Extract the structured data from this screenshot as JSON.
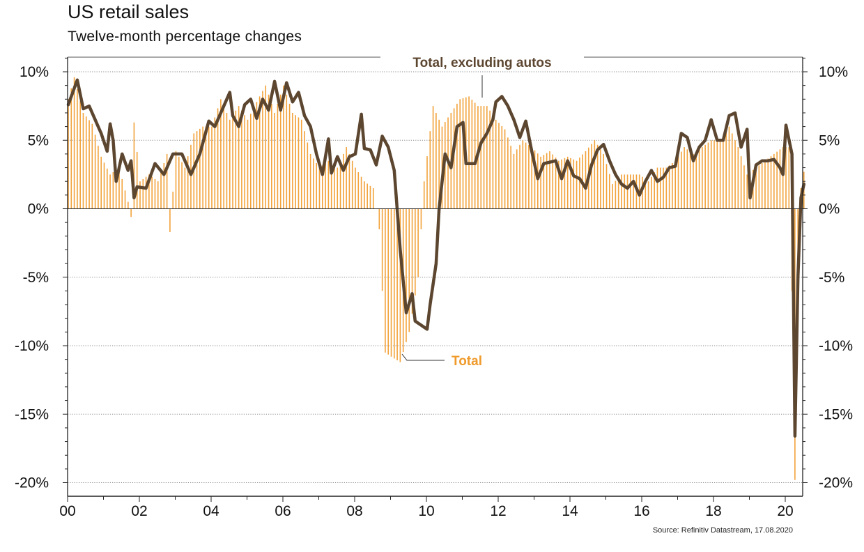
{
  "header": {
    "title": "US retail sales",
    "subtitle": "Twelve-month percentage changes"
  },
  "footer": {
    "source": "Source: Refinitiv Datastream, 17.08.2020"
  },
  "colors": {
    "bars": "#f2a23a",
    "line": "#5c4630",
    "total_label": "#ef9a2b",
    "grid": "#8a8a8a",
    "axis": "#222222"
  },
  "chart_data": {
    "type": "bar",
    "title": "US retail sales",
    "subtitle": "Twelve-month percentage changes",
    "x_start": "2000-01",
    "x_end": "2020-07",
    "x_ticks": [
      "00",
      "02",
      "04",
      "06",
      "08",
      "10",
      "12",
      "14",
      "16",
      "18",
      "20"
    ],
    "y_ticks": [
      "10%",
      "5%",
      "0%",
      "-5%",
      "-10%",
      "-15%",
      "-20%"
    ],
    "ylim": [
      -21,
      11
    ],
    "grid": "horizontal dotted",
    "legend": "inline labels",
    "series": [
      {
        "name": "Total",
        "type": "bar",
        "monthly_anchors": [
          [
            "2000-01",
            8.0
          ],
          [
            "2000-03",
            9.6
          ],
          [
            "2000-06",
            7.0
          ],
          [
            "2000-09",
            6.2
          ],
          [
            "2000-12",
            3.8
          ],
          [
            "2001-03",
            2.5
          ],
          [
            "2001-06",
            3.0
          ],
          [
            "2001-09",
            0.5
          ],
          [
            "2001-10",
            -0.6
          ],
          [
            "2001-11",
            6.3
          ],
          [
            "2002-01",
            2.0
          ],
          [
            "2002-04",
            2.5
          ],
          [
            "2002-07",
            2.0
          ],
          [
            "2002-10",
            4.0
          ],
          [
            "2002-11",
            -1.7
          ],
          [
            "2003-01",
            4.2
          ],
          [
            "2003-04",
            3.0
          ],
          [
            "2003-07",
            5.5
          ],
          [
            "2003-10",
            6.0
          ],
          [
            "2004-01",
            6.0
          ],
          [
            "2004-04",
            8.0
          ],
          [
            "2004-07",
            6.5
          ],
          [
            "2004-10",
            7.5
          ],
          [
            "2005-01",
            6.5
          ],
          [
            "2005-04",
            7.8
          ],
          [
            "2005-07",
            9.0
          ],
          [
            "2005-10",
            7.0
          ],
          [
            "2006-01",
            9.0
          ],
          [
            "2006-04",
            7.0
          ],
          [
            "2006-07",
            6.5
          ],
          [
            "2006-10",
            4.0
          ],
          [
            "2007-01",
            3.0
          ],
          [
            "2007-04",
            3.5
          ],
          [
            "2007-07",
            3.0
          ],
          [
            "2007-10",
            4.5
          ],
          [
            "2008-01",
            3.0
          ],
          [
            "2008-04",
            2.0
          ],
          [
            "2008-07",
            1.5
          ],
          [
            "2008-09",
            -1.5
          ],
          [
            "2008-11",
            -10.5
          ],
          [
            "2009-01",
            -10.8
          ],
          [
            "2009-04",
            -11.2
          ],
          [
            "2009-07",
            -9.0
          ],
          [
            "2009-10",
            -5.0
          ],
          [
            "2009-12",
            2.0
          ],
          [
            "2010-03",
            7.5
          ],
          [
            "2010-06",
            6.0
          ],
          [
            "2010-09",
            7.0
          ],
          [
            "2010-12",
            8.0
          ],
          [
            "2011-03",
            8.2
          ],
          [
            "2011-06",
            7.5
          ],
          [
            "2011-09",
            7.5
          ],
          [
            "2011-12",
            6.5
          ],
          [
            "2012-03",
            5.8
          ],
          [
            "2012-06",
            4.0
          ],
          [
            "2012-09",
            5.0
          ],
          [
            "2012-12",
            4.5
          ],
          [
            "2013-03",
            3.8
          ],
          [
            "2013-06",
            4.2
          ],
          [
            "2013-09",
            3.5
          ],
          [
            "2013-12",
            3.8
          ],
          [
            "2014-03",
            3.5
          ],
          [
            "2014-06",
            4.2
          ],
          [
            "2014-09",
            5.0
          ],
          [
            "2014-12",
            4.0
          ],
          [
            "2015-03",
            1.8
          ],
          [
            "2015-06",
            2.5
          ],
          [
            "2015-09",
            2.5
          ],
          [
            "2015-12",
            2.5
          ],
          [
            "2016-03",
            2.0
          ],
          [
            "2016-06",
            3.0
          ],
          [
            "2016-09",
            3.0
          ],
          [
            "2016-12",
            3.5
          ],
          [
            "2017-03",
            4.5
          ],
          [
            "2017-06",
            4.0
          ],
          [
            "2017-09",
            4.5
          ],
          [
            "2017-12",
            5.0
          ],
          [
            "2018-03",
            5.0
          ],
          [
            "2018-06",
            6.0
          ],
          [
            "2018-09",
            4.5
          ],
          [
            "2018-12",
            2.5
          ],
          [
            "2019-03",
            3.0
          ],
          [
            "2019-06",
            3.5
          ],
          [
            "2019-09",
            4.0
          ],
          [
            "2019-12",
            4.5
          ],
          [
            "2020-02",
            4.5
          ],
          [
            "2020-03",
            -6.0
          ],
          [
            "2020-04",
            -19.8
          ],
          [
            "2020-05",
            -5.5
          ],
          [
            "2020-06",
            1.5
          ],
          [
            "2020-07",
            2.7
          ]
        ]
      },
      {
        "name": "Total, excluding autos",
        "type": "line",
        "monthly_anchors": [
          [
            "2000-01",
            7.6
          ],
          [
            "2000-02",
            8.2
          ],
          [
            "2000-04",
            9.4
          ],
          [
            "2000-06",
            7.3
          ],
          [
            "2000-08",
            7.5
          ],
          [
            "2000-10",
            6.5
          ],
          [
            "2000-12",
            5.5
          ],
          [
            "2001-02",
            4.2
          ],
          [
            "2001-03",
            6.2
          ],
          [
            "2001-04",
            5.0
          ],
          [
            "2001-05",
            2.0
          ],
          [
            "2001-07",
            4.0
          ],
          [
            "2001-09",
            2.8
          ],
          [
            "2001-10",
            3.5
          ],
          [
            "2001-11",
            0.8
          ],
          [
            "2001-12",
            1.6
          ],
          [
            "2002-03",
            1.5
          ],
          [
            "2002-06",
            3.3
          ],
          [
            "2002-09",
            2.5
          ],
          [
            "2002-12",
            4.0
          ],
          [
            "2003-03",
            4.0
          ],
          [
            "2003-06",
            2.5
          ],
          [
            "2003-09",
            4.0
          ],
          [
            "2003-12",
            6.4
          ],
          [
            "2004-02",
            6.0
          ],
          [
            "2004-05",
            7.5
          ],
          [
            "2004-07",
            8.5
          ],
          [
            "2004-08",
            6.8
          ],
          [
            "2004-10",
            6.0
          ],
          [
            "2004-12",
            7.6
          ],
          [
            "2005-02",
            8.0
          ],
          [
            "2005-04",
            6.6
          ],
          [
            "2005-06",
            8.0
          ],
          [
            "2005-08",
            7.2
          ],
          [
            "2005-10",
            9.3
          ],
          [
            "2005-12",
            7.2
          ],
          [
            "2006-02",
            9.2
          ],
          [
            "2006-04",
            7.8
          ],
          [
            "2006-06",
            8.5
          ],
          [
            "2006-08",
            6.8
          ],
          [
            "2006-10",
            6.0
          ],
          [
            "2006-12",
            4.0
          ],
          [
            "2007-02",
            2.5
          ],
          [
            "2007-04",
            5.1
          ],
          [
            "2007-05",
            2.6
          ],
          [
            "2007-07",
            3.8
          ],
          [
            "2007-09",
            2.8
          ],
          [
            "2007-11",
            3.8
          ],
          [
            "2008-01",
            4.0
          ],
          [
            "2008-03",
            6.9
          ],
          [
            "2008-04",
            4.4
          ],
          [
            "2008-06",
            4.3
          ],
          [
            "2008-08",
            3.2
          ],
          [
            "2008-10",
            5.3
          ],
          [
            "2008-12",
            4.5
          ],
          [
            "2009-02",
            2.8
          ],
          [
            "2009-04",
            -3.0
          ],
          [
            "2009-06",
            -7.6
          ],
          [
            "2009-08",
            -6.2
          ],
          [
            "2009-09",
            -8.2
          ],
          [
            "2009-11",
            -8.5
          ],
          [
            "2010-01",
            -8.8
          ],
          [
            "2010-02",
            -7.0
          ],
          [
            "2010-04",
            -4.0
          ],
          [
            "2010-05",
            0.0
          ],
          [
            "2010-07",
            4.0
          ],
          [
            "2010-09",
            3.0
          ],
          [
            "2010-11",
            6.0
          ],
          [
            "2011-01",
            6.3
          ],
          [
            "2011-02",
            3.3
          ],
          [
            "2011-05",
            3.3
          ],
          [
            "2011-07",
            4.8
          ],
          [
            "2011-09",
            5.5
          ],
          [
            "2011-11",
            6.5
          ],
          [
            "2011-12",
            7.8
          ],
          [
            "2012-02",
            8.2
          ],
          [
            "2012-04",
            7.5
          ],
          [
            "2012-06",
            6.5
          ],
          [
            "2012-08",
            5.2
          ],
          [
            "2012-10",
            6.4
          ],
          [
            "2012-12",
            4.2
          ],
          [
            "2013-02",
            2.2
          ],
          [
            "2013-04",
            3.3
          ],
          [
            "2013-06",
            3.4
          ],
          [
            "2013-08",
            3.5
          ],
          [
            "2013-10",
            2.2
          ],
          [
            "2013-12",
            3.5
          ],
          [
            "2014-02",
            2.4
          ],
          [
            "2014-04",
            2.2
          ],
          [
            "2014-06",
            1.5
          ],
          [
            "2014-08",
            3.2
          ],
          [
            "2014-10",
            4.3
          ],
          [
            "2014-12",
            4.7
          ],
          [
            "2015-02",
            3.5
          ],
          [
            "2015-04",
            2.5
          ],
          [
            "2015-06",
            1.8
          ],
          [
            "2015-08",
            1.5
          ],
          [
            "2015-10",
            2.0
          ],
          [
            "2015-12",
            1.0
          ],
          [
            "2016-02",
            2.0
          ],
          [
            "2016-04",
            2.8
          ],
          [
            "2016-06",
            2.0
          ],
          [
            "2016-08",
            2.3
          ],
          [
            "2016-10",
            3.0
          ],
          [
            "2016-12",
            3.1
          ],
          [
            "2017-02",
            5.5
          ],
          [
            "2017-04",
            5.2
          ],
          [
            "2017-06",
            3.5
          ],
          [
            "2017-08",
            4.5
          ],
          [
            "2017-10",
            5.0
          ],
          [
            "2017-12",
            6.5
          ],
          [
            "2018-02",
            5.0
          ],
          [
            "2018-04",
            5.0
          ],
          [
            "2018-06",
            6.8
          ],
          [
            "2018-08",
            7.0
          ],
          [
            "2018-10",
            4.5
          ],
          [
            "2018-12",
            5.8
          ],
          [
            "2019-01",
            0.8
          ],
          [
            "2019-03",
            3.2
          ],
          [
            "2019-05",
            3.5
          ],
          [
            "2019-07",
            3.5
          ],
          [
            "2019-09",
            3.6
          ],
          [
            "2019-11",
            3.0
          ],
          [
            "2019-12",
            2.5
          ],
          [
            "2020-01",
            6.1
          ],
          [
            "2020-03",
            4.0
          ],
          [
            "2020-04",
            -16.6
          ],
          [
            "2020-05",
            -5.0
          ],
          [
            "2020-06",
            0.8
          ],
          [
            "2020-07",
            1.8
          ]
        ]
      }
    ]
  }
}
